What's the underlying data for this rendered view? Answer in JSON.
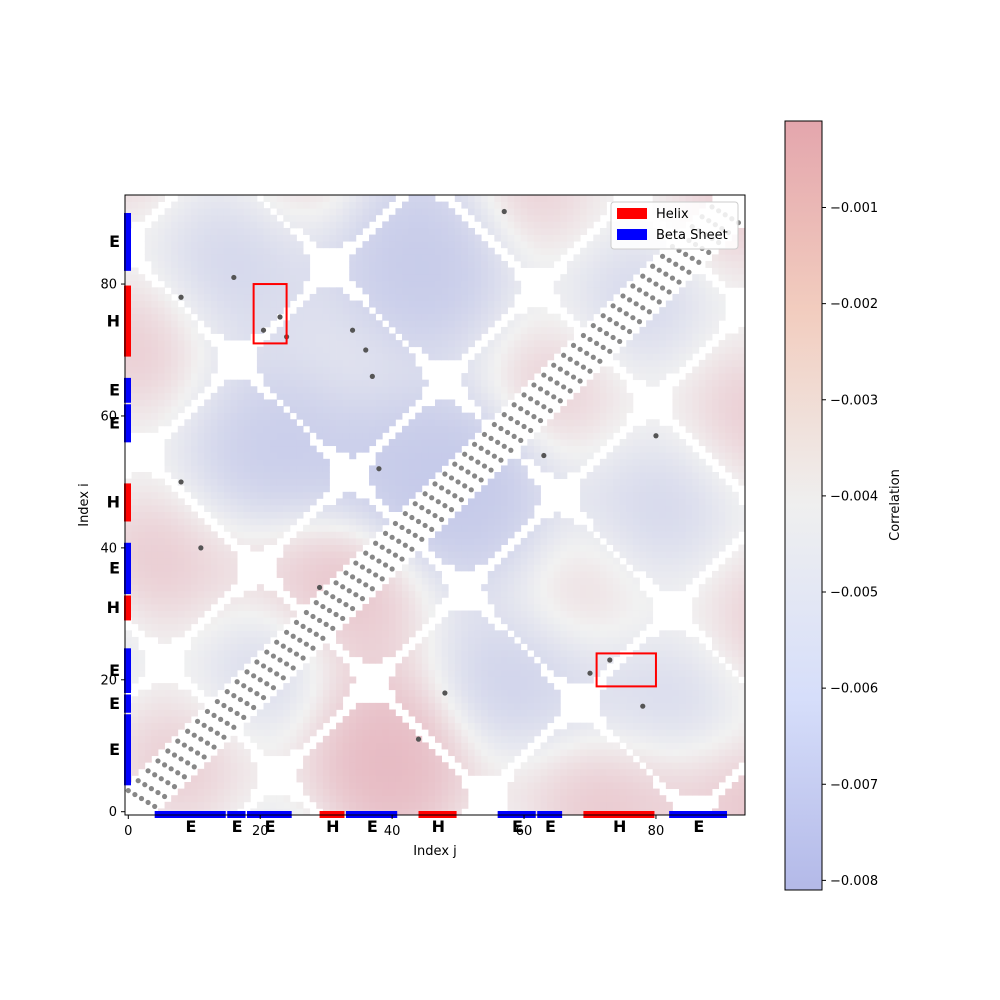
{
  "chart_data": {
    "type": "heatmap",
    "title": "",
    "xlabel": "Index j",
    "ylabel": "Index i",
    "colorbar_label": "Correlation",
    "xlim": [
      -0.5,
      93.5
    ],
    "ylim": [
      -0.5,
      93.5
    ],
    "x_ticks": [
      0,
      20,
      40,
      60,
      80
    ],
    "y_ticks": [
      0,
      20,
      40,
      60,
      80
    ],
    "colorbar": {
      "min": -0.0081,
      "max": -0.0001,
      "ticks": [
        -0.001,
        -0.002,
        -0.003,
        -0.004,
        -0.005,
        -0.006,
        -0.007,
        -0.008
      ],
      "tick_labels": [
        "−0.001",
        "−0.002",
        "−0.003",
        "−0.004",
        "−0.005",
        "−0.006",
        "−0.007",
        "−0.008"
      ],
      "colormap": "coolwarm",
      "alpha": 0.4
    },
    "legend": {
      "placement": "top-right",
      "entries": [
        {
          "label": "Helix",
          "color": "#ff0000"
        },
        {
          "label": "Beta Sheet",
          "color": "#0000ff"
        }
      ]
    },
    "secondary_structure": [
      {
        "type": "E",
        "start": 4,
        "end": 15
      },
      {
        "type": "E",
        "start": 15,
        "end": 18
      },
      {
        "type": "E",
        "start": 18,
        "end": 25
      },
      {
        "type": "H",
        "start": 29,
        "end": 33
      },
      {
        "type": "E",
        "start": 33,
        "end": 41
      },
      {
        "type": "H",
        "start": 44,
        "end": 50
      },
      {
        "type": "E",
        "start": 56,
        "end": 62
      },
      {
        "type": "E",
        "start": 62,
        "end": 66
      },
      {
        "type": "H",
        "start": 69,
        "end": 80
      },
      {
        "type": "E",
        "start": 82,
        "end": 91
      }
    ],
    "highlight_boxes": [
      {
        "x0": 19,
        "x1": 24,
        "y0": 71,
        "y1": 80,
        "color": "#ff0000"
      },
      {
        "x0": 71,
        "x1": 80,
        "y0": 19,
        "y1": 24,
        "color": "#ff0000"
      }
    ],
    "contact_points": [
      [
        20.5,
        73
      ],
      [
        24,
        72
      ],
      [
        23,
        75
      ],
      [
        8,
        78
      ],
      [
        16,
        81
      ],
      [
        34,
        73
      ],
      [
        36,
        70
      ],
      [
        37,
        66
      ],
      [
        8,
        50
      ],
      [
        11,
        40
      ],
      [
        73,
        23
      ],
      [
        78,
        16
      ],
      [
        44,
        11
      ],
      [
        63,
        54
      ],
      [
        57,
        91
      ],
      [
        80,
        57
      ],
      [
        48,
        18
      ],
      [
        29,
        34
      ],
      [
        70,
        21
      ],
      [
        38,
        52
      ]
    ]
  },
  "icons": {
    "legend_helix_swatch": "red-rectangle",
    "legend_sheet_swatch": "blue-rectangle"
  }
}
